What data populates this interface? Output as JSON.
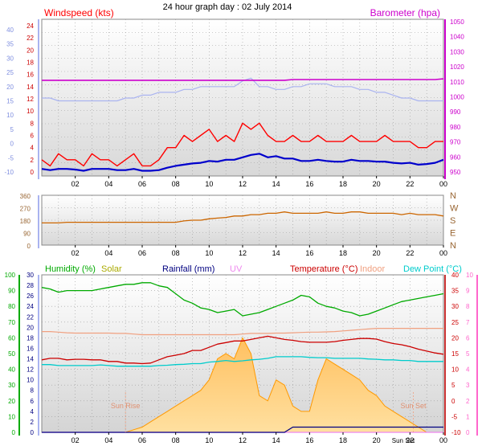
{
  "title": "24 hour graph day : 02 July 2014",
  "colors": {
    "wind": "#ff0000",
    "gust_axis": "#3333cc",
    "wind_avg": "#0000cc",
    "gust": "#aab4f0",
    "barometer": "#cc00cc",
    "winddir": "#cc6600",
    "winddir_axis": "#996633",
    "humidity": "#00aa00",
    "solar": "#ffb84d",
    "solar_edge": "#ff9900",
    "rainfall": "#000080",
    "uv": "#ee88ee",
    "temperature": "#cc0000",
    "indoor": "#f0a080",
    "dewpoint": "#00cccc",
    "solar_axis_label": "#aaaa00",
    "uv_axis": "#ff66cc"
  },
  "x_ticks": [
    "02",
    "04",
    "06",
    "08",
    "10",
    "12",
    "14",
    "16",
    "18",
    "20",
    "22",
    "00"
  ],
  "chart_data": [
    {
      "type": "line",
      "panel": "wind_barometer",
      "title": "",
      "x_hours": [
        0,
        0.5,
        1,
        1.5,
        2,
        2.5,
        3,
        3.5,
        4,
        4.5,
        5,
        5.5,
        6,
        6.5,
        7,
        7.5,
        8,
        8.5,
        9,
        9.5,
        10,
        10.5,
        11,
        11.5,
        12,
        12.5,
        13,
        13.5,
        14,
        14.5,
        15,
        15.5,
        16,
        16.5,
        17,
        17.5,
        18,
        18.5,
        19,
        19.5,
        20,
        20.5,
        21,
        21.5,
        22,
        22.5,
        23,
        23.5,
        24
      ],
      "y_left_label": "Windspeed (kts)",
      "y_left_ticks": [
        0,
        2,
        4,
        6,
        8,
        10,
        12,
        14,
        16,
        18,
        20,
        22,
        24
      ],
      "y_far_left_ticks": [
        -10,
        -5,
        0,
        5,
        10,
        15,
        20,
        25,
        30,
        35,
        40
      ],
      "y_right_label": "Barometer (hpa)",
      "y_right_ticks": [
        950,
        960,
        970,
        980,
        990,
        1000,
        1010,
        1020,
        1030,
        1040,
        1050
      ],
      "series": [
        {
          "key": "wind",
          "values": [
            2,
            1,
            3,
            2,
            2,
            1,
            3,
            2,
            2,
            1,
            2,
            3,
            1,
            1,
            2,
            4,
            4,
            6,
            5,
            6,
            7,
            5,
            6,
            5,
            8,
            7,
            8,
            6,
            5,
            5,
            6,
            5,
            5,
            6,
            5,
            5,
            5,
            6,
            5,
            5,
            5,
            6,
            5,
            5,
            5,
            4,
            4,
            5,
            5
          ]
        },
        {
          "key": "wind_avg",
          "values": [
            0.5,
            0.3,
            0.5,
            0.5,
            0.4,
            0.2,
            0.5,
            0.5,
            0.5,
            0.3,
            0.3,
            0.5,
            0.2,
            0.2,
            0.3,
            0.7,
            1,
            1.2,
            1.4,
            1.5,
            1.8,
            1.7,
            2,
            2,
            2.4,
            2.8,
            3,
            2.4,
            2.6,
            2.2,
            2.2,
            1.8,
            1.8,
            2,
            1.8,
            1.7,
            1.7,
            2,
            1.8,
            1.8,
            1.7,
            1.7,
            1.5,
            1.4,
            1.5,
            1.2,
            1.3,
            1.5,
            2
          ]
        },
        {
          "key": "gust",
          "values": [
            16,
            16,
            15,
            15,
            15,
            15,
            15,
            15,
            15,
            15,
            16,
            16,
            17,
            17,
            18,
            18,
            18,
            19,
            19,
            20,
            20,
            20,
            20,
            20,
            22,
            23,
            20,
            20,
            19,
            19,
            20,
            20,
            21,
            21,
            21,
            20,
            20,
            20,
            19,
            19,
            18,
            18,
            17,
            16,
            16,
            15,
            15,
            15,
            15
          ]
        },
        {
          "key": "barometer",
          "values": [
            1011,
            1011,
            1011,
            1011,
            1011,
            1011,
            1011,
            1011,
            1011,
            1011,
            1011,
            1011,
            1011,
            1011,
            1011,
            1011,
            1011,
            1011,
            1011,
            1011,
            1011,
            1011,
            1011,
            1011,
            1011,
            1011,
            1011,
            1011,
            1011,
            1011,
            1011.5,
            1011.5,
            1011.5,
            1011.5,
            1011.5,
            1011.5,
            1011.5,
            1011.5,
            1011.5,
            1011.5,
            1011.5,
            1011.5,
            1011.5,
            1011.5,
            1011.5,
            1011.5,
            1011.5,
            1011.5,
            1012
          ]
        }
      ]
    },
    {
      "type": "line",
      "panel": "wind_direction",
      "title": "",
      "x_hours": [
        0,
        0.5,
        1,
        1.5,
        2,
        2.5,
        3,
        3.5,
        4,
        4.5,
        5,
        5.5,
        6,
        6.5,
        7,
        7.5,
        8,
        8.5,
        9,
        9.5,
        10,
        10.5,
        11,
        11.5,
        12,
        12.5,
        13,
        13.5,
        14,
        14.5,
        15,
        15.5,
        16,
        16.5,
        17,
        17.5,
        18,
        18.5,
        19,
        19.5,
        20,
        20.5,
        21,
        21.5,
        22,
        22.5,
        23,
        23.5,
        24
      ],
      "y_ticks": [
        0,
        90,
        180,
        270,
        360
      ],
      "compass_labels": [
        "N",
        "W",
        "S",
        "E",
        "N"
      ],
      "values": [
        160,
        160,
        160,
        165,
        165,
        165,
        165,
        165,
        165,
        165,
        165,
        165,
        165,
        165,
        165,
        165,
        165,
        175,
        180,
        180,
        190,
        195,
        200,
        210,
        210,
        220,
        220,
        230,
        230,
        240,
        230,
        230,
        230,
        230,
        240,
        230,
        230,
        240,
        240,
        230,
        230,
        230,
        230,
        220,
        230,
        220,
        220,
        220,
        210
      ]
    },
    {
      "type": "area",
      "panel": "temp_humidity_solar",
      "title": "",
      "x_hours": [
        0,
        0.5,
        1,
        1.5,
        2,
        2.5,
        3,
        3.5,
        4,
        4.5,
        5,
        5.5,
        6,
        6.5,
        7,
        7.5,
        8,
        8.5,
        9,
        9.5,
        10,
        10.5,
        11,
        11.5,
        12,
        12.5,
        13,
        13.5,
        14,
        14.5,
        15,
        15.5,
        16,
        16.5,
        17,
        17.5,
        18,
        18.5,
        19,
        19.5,
        20,
        20.5,
        21,
        21.5,
        22,
        22.5,
        23,
        23.5,
        24
      ],
      "legend": [
        "Humidity (%)",
        "Solar",
        "Rainfall (mm)",
        "UV",
        "Temperature (°C)",
        "Indoor",
        "Dew Point (°C)"
      ],
      "humidity_ticks": [
        0,
        10,
        20,
        30,
        40,
        50,
        60,
        70,
        80,
        90,
        100
      ],
      "rain_ticks": [
        0,
        2,
        4,
        6,
        8,
        10,
        12,
        14,
        16,
        18,
        20,
        22,
        24,
        26,
        28,
        30
      ],
      "temp_ticks": [
        -10,
        -5,
        0,
        5,
        10,
        15,
        20,
        25,
        30,
        35,
        40
      ],
      "uv_ticks": [
        0,
        1,
        2,
        3,
        4,
        5,
        6,
        7,
        8,
        9,
        10
      ],
      "annotations": [
        "Sun Rise",
        "Sun Set",
        "Sun Set"
      ],
      "series": [
        {
          "key": "humidity",
          "values": [
            92,
            91,
            89,
            90,
            90,
            90,
            90,
            91,
            92,
            93,
            94,
            94,
            95,
            95,
            93,
            92,
            88,
            84,
            82,
            79,
            78,
            76,
            77,
            78,
            74,
            75,
            76,
            78,
            80,
            82,
            84,
            87,
            86,
            82,
            80,
            79,
            77,
            76,
            74,
            75,
            77,
            79,
            81,
            83,
            84,
            85,
            86,
            87,
            88
          ]
        },
        {
          "key": "temperature",
          "values": [
            13,
            13.5,
            13.5,
            13,
            13.2,
            13.2,
            13,
            13,
            12.5,
            12.5,
            12,
            12,
            11.8,
            12,
            13,
            14,
            14.5,
            15,
            16,
            16,
            17,
            18,
            18.5,
            19,
            19,
            19.5,
            20,
            20.5,
            20,
            19.5,
            19.2,
            18.8,
            18.6,
            18.6,
            18.6,
            18.8,
            19.2,
            19.5,
            19.8,
            19.8,
            19.6,
            18.8,
            18.2,
            17.8,
            17.2,
            16.4,
            15.8,
            15.2,
            14.8
          ]
        },
        {
          "key": "dewpoint",
          "values": [
            11.5,
            11.5,
            11.2,
            11.2,
            11.2,
            11.2,
            11.2,
            11.4,
            11.2,
            11,
            11,
            11,
            11,
            11,
            11.2,
            11.3,
            11.5,
            11.6,
            11.8,
            11.8,
            12.3,
            12.5,
            12.8,
            12.5,
            12.7,
            13,
            13.2,
            13.5,
            14,
            14,
            14,
            14,
            13.8,
            13.7,
            13.7,
            13.5,
            13.5,
            13.5,
            13.5,
            13.3,
            13.2,
            13,
            13,
            12.8,
            12.8,
            12.5,
            12.5,
            12.5,
            12.5
          ]
        },
        {
          "key": "indoor",
          "values": [
            22,
            22,
            21.8,
            21.6,
            21.5,
            21.5,
            21.5,
            21.5,
            21.5,
            21.4,
            21.4,
            21.2,
            21,
            21,
            21,
            21,
            21,
            21,
            21,
            21,
            21,
            21,
            21,
            21,
            21.2,
            21.4,
            21.4,
            21.4,
            21.5,
            21.5,
            21.6,
            21.7,
            21.8,
            21.8,
            21.9,
            22,
            22.2,
            22.4,
            22.6,
            22.8,
            23,
            23,
            23,
            23,
            23,
            23,
            23,
            23,
            23
          ]
        },
        {
          "key": "solar",
          "values": [
            0,
            0,
            0,
            0,
            0,
            0,
            0,
            0,
            0,
            0,
            0,
            0.5,
            1,
            2,
            3,
            4,
            5,
            6,
            7,
            8,
            10,
            14,
            15,
            14,
            18,
            15,
            7,
            6,
            10,
            9,
            5,
            4,
            4,
            10,
            14,
            13,
            12,
            11,
            10,
            8,
            7,
            5,
            4,
            3,
            2,
            1,
            0,
            0,
            0
          ]
        },
        {
          "key": "uv",
          "values": [
            0,
            0,
            0,
            0,
            0,
            0,
            0,
            0,
            0,
            0,
            0,
            0,
            0,
            0,
            0,
            0,
            0,
            0,
            0,
            0,
            0,
            0,
            0,
            0,
            0,
            0,
            0,
            0,
            0,
            0,
            0,
            0,
            0,
            0,
            0,
            0,
            0,
            0,
            0,
            0,
            0,
            0,
            0,
            0,
            0,
            0,
            0,
            0,
            0
          ]
        },
        {
          "key": "rainfall",
          "values": [
            0,
            0,
            0,
            0,
            0,
            0,
            0,
            0,
            0,
            0,
            0,
            0,
            0,
            0,
            0,
            0,
            0,
            0,
            0,
            0,
            0,
            0,
            0,
            0,
            0,
            0,
            0,
            0,
            0,
            0,
            1,
            1,
            1,
            1,
            1,
            1,
            1,
            1,
            1,
            1,
            1,
            1,
            1,
            1,
            1,
            1,
            1,
            1,
            1
          ]
        }
      ]
    }
  ]
}
